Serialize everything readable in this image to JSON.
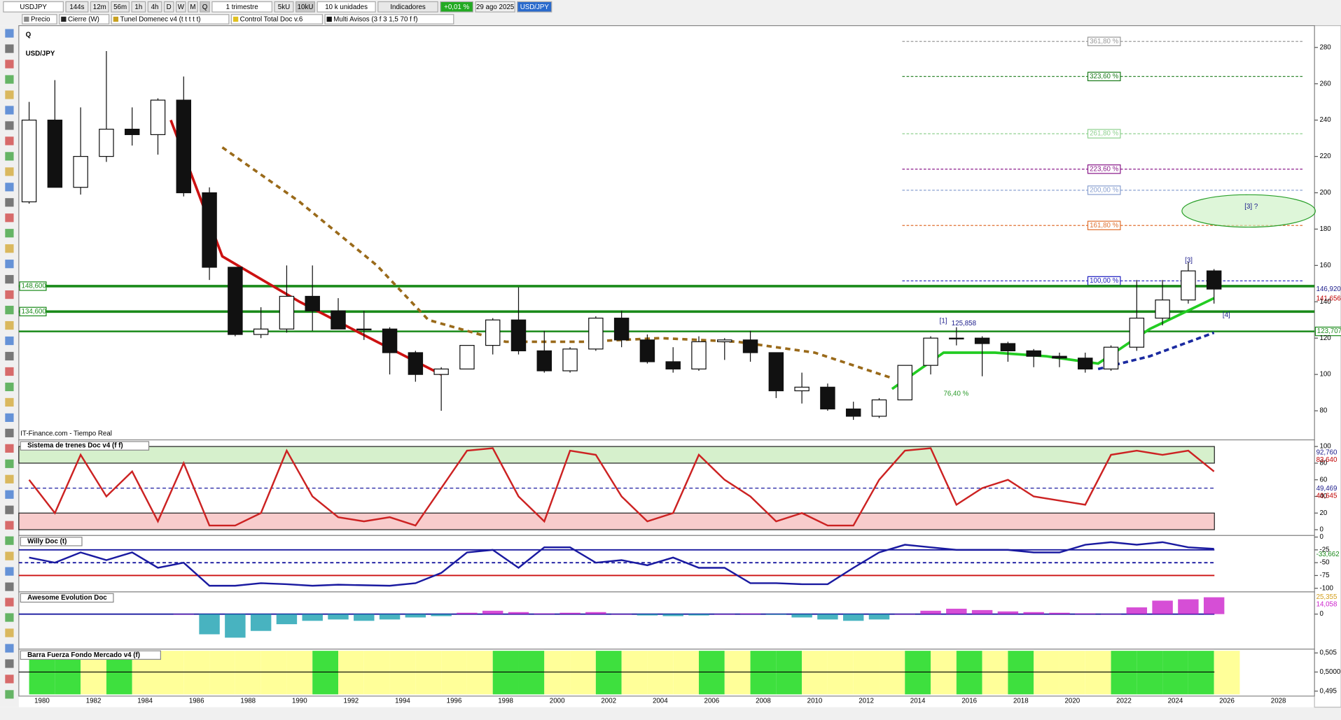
{
  "toolbar": {
    "symbol": "USDJPY",
    "timeframes": [
      "144s",
      "12m",
      "56m",
      "1h",
      "4h",
      "D",
      "W",
      "M",
      "Q"
    ],
    "period": "1 trimestre",
    "unit_buttons": [
      "5kU",
      "10kU"
    ],
    "units": "10 k unidades",
    "indicators": "Indicadores",
    "change": "+0,01 %",
    "date": "29 ago 2025",
    "symbol_tag": "USD/JPY"
  },
  "studies": [
    "Precio",
    "Cierre (W)",
    "Tunel Domenec v4 (t t t t t)",
    "Control Total Doc v.6",
    "Multi Avisos (3 f 3 1,5 70 f f)"
  ],
  "chart_data": [
    {
      "type": "candlestick",
      "title": "Q",
      "subtitle": "USD/JPY",
      "source": "IT-Finance.com - Tiempo Real",
      "x": [
        1979,
        1980,
        1981,
        1982,
        1983,
        1984,
        1985,
        1986,
        1987,
        1988,
        1989,
        1990,
        1991,
        1992,
        1993,
        1994,
        1995,
        1996,
        1997,
        1998,
        1999,
        2000,
        2001,
        2002,
        2003,
        2004,
        2005,
        2006,
        2007,
        2008,
        2009,
        2010,
        2011,
        2012,
        2013,
        2014,
        2015,
        2016,
        2017,
        2018,
        2019,
        2020,
        2021,
        2022,
        2023,
        2024,
        2025
      ],
      "open": [
        195,
        240,
        203,
        220,
        235,
        232,
        251,
        200,
        159,
        122,
        125,
        143,
        135,
        125,
        125,
        112,
        100,
        103,
        116,
        130,
        113,
        102,
        114,
        131,
        119,
        107,
        103,
        118,
        119,
        112,
        91,
        93,
        81,
        77,
        86,
        105,
        120,
        120,
        117,
        113,
        110,
        109,
        103,
        115,
        131,
        141,
        157
      ],
      "high": [
        250,
        262,
        247,
        278,
        247,
        252,
        264,
        203,
        159,
        137,
        160,
        160,
        142,
        135,
        126,
        113,
        104,
        116,
        131,
        148,
        124,
        115,
        132,
        135,
        122,
        115,
        121,
        120,
        124,
        112,
        101,
        95,
        85,
        87,
        105,
        121,
        126,
        121,
        118,
        114,
        112,
        112,
        116,
        152,
        152,
        162,
        158
      ],
      "low": [
        194,
        203,
        199,
        217,
        226,
        221,
        198,
        152,
        121,
        120,
        123,
        124,
        125,
        119,
        100,
        96,
        80,
        103,
        111,
        111,
        101,
        101,
        113,
        115,
        106,
        101,
        102,
        108,
        107,
        87,
        84,
        80,
        75,
        76,
        86,
        100,
        116,
        99,
        107,
        104,
        104,
        101,
        102,
        113,
        127,
        139,
        139
      ],
      "close": [
        240,
        203,
        220,
        235,
        232,
        251,
        200,
        159,
        122,
        125,
        143,
        135,
        125,
        125,
        112,
        100,
        103,
        116,
        130,
        113,
        102,
        114,
        131,
        119,
        107,
        103,
        118,
        119,
        112,
        91,
        93,
        81,
        77,
        86,
        105,
        120,
        120,
        117,
        113,
        110,
        109,
        103,
        115,
        131,
        141,
        157,
        147
      ],
      "up_color": "#ffffff",
      "down_color": "#111111",
      "xlim": [
        1979.1,
        2029.4
      ],
      "ylim": [
        64,
        292
      ],
      "xticks": [
        1980,
        1982,
        1984,
        1986,
        1988,
        1990,
        1992,
        1994,
        1996,
        1998,
        2000,
        2002,
        2004,
        2006,
        2008,
        2010,
        2012,
        2014,
        2016,
        2018,
        2020,
        2022,
        2024,
        2026,
        2028
      ],
      "yticks": [
        80,
        100,
        120,
        140,
        160,
        180,
        200,
        220,
        240,
        260,
        280
      ],
      "levels": [
        {
          "value": 148.6,
          "label": "148,600"
        },
        {
          "value": 134.6,
          "label": "134,600"
        },
        {
          "value": 123.707,
          "label": "123,707"
        }
      ],
      "level_color": "#1a8a1a",
      "price_labels": [
        {
          "value": 146.92,
          "label": "146,920",
          "color": "#1a1a8a"
        },
        {
          "value": 141.656,
          "label": "141,656",
          "color": "#c00000"
        }
      ],
      "fib_levels": [
        {
          "value": 283.3,
          "label": "361,80 %",
          "color": "#999999"
        },
        {
          "value": 264,
          "label": "323,60 %",
          "color": "#1a7a1a"
        },
        {
          "value": 232.5,
          "label": "261,80 %",
          "color": "#8fd18f"
        },
        {
          "value": 213,
          "label": "223,60 %",
          "color": "#8a1a8a"
        },
        {
          "value": 201.4,
          "label": "200,00 %",
          "color": "#8aa0d0"
        },
        {
          "value": 182,
          "label": "161,80 %",
          "color": "#e07030"
        },
        {
          "value": 151.5,
          "label": "100,00 %",
          "color": "#2020c0"
        }
      ],
      "annotations": [
        "[1]",
        "125,858",
        "[3]",
        "[3] ?",
        "[4]",
        "76,40 %"
      ],
      "lines": [
        {
          "color": "#9a6a1a",
          "dash": "6 5",
          "x": [
            1987,
            1990,
            1993,
            1995,
            1998,
            2001,
            2004,
            2007,
            2010,
            2013
          ],
          "values": [
            225,
            195,
            160,
            130,
            118,
            118,
            120,
            118,
            112,
            98
          ]
        },
        {
          "color": "#cc1111",
          "dash": "",
          "x": [
            1985,
            1987,
            1990,
            1993,
            1995.5
          ],
          "values": [
            240,
            165,
            140,
            118,
            100
          ]
        },
        {
          "color": "#22cc22",
          "dash": "",
          "x": [
            2013,
            2015,
            2017,
            2019,
            2021,
            2023,
            2025.5
          ],
          "values": [
            92,
            112,
            112,
            110,
            106,
            125,
            142
          ]
        },
        {
          "color": "#1a2aa0",
          "dash": "6 4",
          "x": [
            2021,
            2023,
            2025.5
          ],
          "values": [
            103,
            110,
            123
          ]
        }
      ]
    },
    {
      "type": "line",
      "title": "Sistema de trenes Doc v4 (f f)",
      "xlim": [
        1979.1,
        2029.4
      ],
      "ylim": [
        -7,
        108
      ],
      "yticks": [
        0,
        20,
        40,
        60,
        80,
        100
      ],
      "zones": [
        {
          "from": 80,
          "to": 100,
          "color": "#d6f0cc"
        },
        {
          "from": 0,
          "to": 20,
          "color": "#f8cccc"
        }
      ],
      "midline": 50,
      "series": [
        {
          "color": "#cc2222",
          "values": [
            60,
            20,
            90,
            40,
            70,
            10,
            80,
            5,
            5,
            20,
            95,
            40,
            15,
            10,
            15,
            5,
            50,
            95,
            98,
            40,
            10,
            95,
            90,
            40,
            10,
            20,
            90,
            60,
            40,
            10,
            20,
            5,
            5,
            60,
            95,
            98,
            30,
            50,
            60,
            40,
            35,
            30,
            90,
            95,
            90,
            95,
            70
          ]
        }
      ],
      "price_labels": [
        {
          "value": 92.76,
          "label": "92,760",
          "color": "#1a1a8a"
        },
        {
          "value": 83.64,
          "label": "83,640",
          "color": "#c00000"
        },
        {
          "value": 49.469,
          "label": "49,469",
          "color": "#1a1a8a"
        },
        {
          "value": 40.645,
          "label": "40,645",
          "color": "#c00000"
        }
      ]
    },
    {
      "type": "line",
      "title": "Willy Doc (t)",
      "xlim": [
        1979.1,
        2029.4
      ],
      "ylim": [
        -107,
        3
      ],
      "yticks": [
        -100,
        -75,
        -50,
        -25,
        0
      ],
      "levels": [
        {
          "value": -25,
          "color": "#1a1aa0"
        },
        {
          "value": -50,
          "color": "#1a1aa0"
        },
        {
          "value": -75,
          "color": "#cc1111"
        }
      ],
      "series": [
        {
          "color": "#1a1aa0",
          "values": [
            -40,
            -50,
            -30,
            -45,
            -30,
            -60,
            -50,
            -95,
            -95,
            -90,
            -92,
            -95,
            -93,
            -94,
            -95,
            -90,
            -70,
            -30,
            -25,
            -60,
            -20,
            -20,
            -50,
            -45,
            -55,
            -40,
            -60,
            -60,
            -90,
            -90,
            -92,
            -92,
            -60,
            -30,
            -15,
            -20,
            -25,
            -25,
            -25,
            -30,
            -30,
            -15,
            -10,
            -15,
            -10,
            -20,
            -23
          ]
        }
      ],
      "price_labels": [
        {
          "value": -33.662,
          "label": "-33,662",
          "color": "#1a8a1a"
        }
      ]
    },
    {
      "type": "bar",
      "title": "Awesome Evolution Doc",
      "xlim": [
        1979.1,
        2029.4
      ],
      "ylim": [
        -52,
        33
      ],
      "yticks": [
        0
      ],
      "pos_color": "#cc22cc",
      "neg_color": "#1aa0b0",
      "values": [
        null,
        null,
        null,
        null,
        null,
        null,
        0,
        -30,
        -35,
        -25,
        -15,
        -10,
        -8,
        -10,
        -8,
        -5,
        -3,
        2,
        5,
        3,
        1,
        2,
        3,
        0,
        -2,
        -3,
        -2,
        0,
        1,
        -1,
        -5,
        -8,
        -10,
        -8,
        0,
        5,
        8,
        6,
        4,
        3,
        2,
        1,
        0,
        10,
        20,
        22,
        25
      ],
      "price_labels": [
        {
          "value": 25.355,
          "label": "25,355",
          "color": "#d4a020"
        },
        {
          "value": 14.058,
          "label": "14,058",
          "color": "#cc22cc"
        }
      ]
    },
    {
      "type": "strip",
      "title": "Barra Fuerza Fondo Mercado v4 (f)",
      "xlim": [
        1979.1,
        2029.4
      ],
      "ylim": [
        0.4937,
        0.506
      ],
      "yticks": [
        {
          "value": 0.495,
          "label": "0,495"
        },
        {
          "value": 0.5,
          "label": "0,5000"
        },
        {
          "value": 0.505,
          "label": "0,505"
        }
      ],
      "colors": [
        "#3ee03e",
        "#3ee03e",
        "#ffff99",
        "#3ee03e",
        "#ffff99",
        "#ffff99",
        "#ffff99",
        "#ffff99",
        "#ffff99",
        "#ffff99",
        "#ffff99",
        "#3ee03e",
        "#ffff99",
        "#ffff99",
        "#ffff99",
        "#ffff99",
        "#ffff99",
        "#ffff99",
        "#3ee03e",
        "#3ee03e",
        "#ffff99",
        "#ffff99",
        "#3ee03e",
        "#ffff99",
        "#ffff99",
        "#ffff99",
        "#3ee03e",
        "#ffff99",
        "#3ee03e",
        "#3ee03e",
        "#ffff99",
        "#ffff99",
        "#ffff99",
        "#ffff99",
        "#3ee03e",
        "#ffff99",
        "#3ee03e",
        "#ffff99",
        "#3ee03e",
        "#ffff99",
        "#ffff99",
        "#ffff99",
        "#3ee03e",
        "#3ee03e",
        "#3ee03e",
        "#3ee03e",
        "#ffff99"
      ]
    }
  ]
}
